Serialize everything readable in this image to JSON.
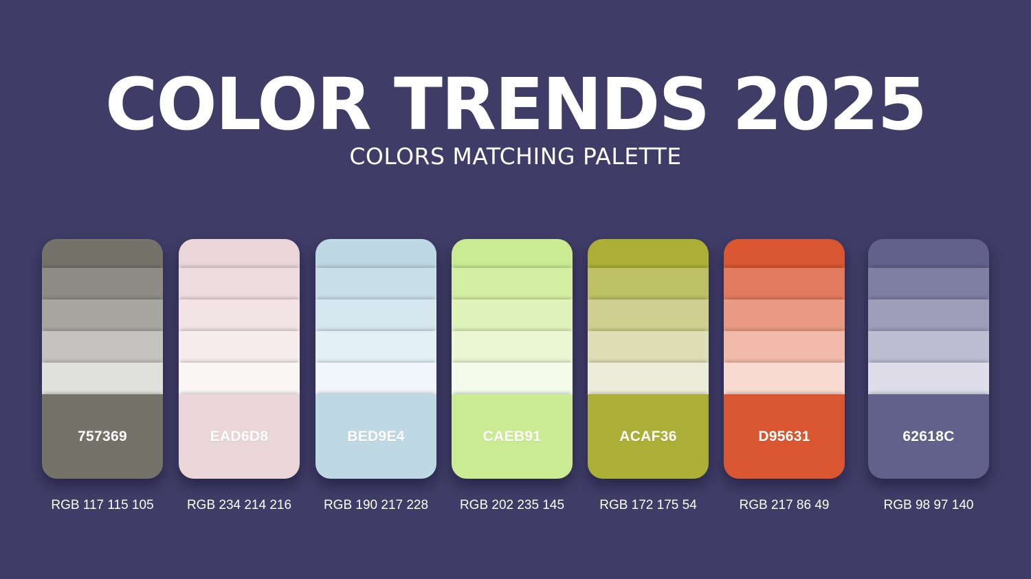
{
  "header": {
    "title": "COLOR TRENDS 2025",
    "subtitle": "COLORS MATCHING PALETTE"
  },
  "palettes": [
    {
      "hex": "757369",
      "rgb": "RGB 117 115 105",
      "shades": [
        "#757369",
        "#8e8c84",
        "#a8a6a0",
        "#c4c3bf",
        "#e0e0dd",
        "#757369"
      ]
    },
    {
      "hex": "EAD6D8",
      "rgb": "RGB 234 214 216",
      "shades": [
        "#ead6d8",
        "#eedcde",
        "#f2e4e6",
        "#f6ecee",
        "#faf6f6",
        "#ead6d8"
      ]
    },
    {
      "hex": "BED9E4",
      "rgb": "RGB 190 217 228",
      "shades": [
        "#bed9e4",
        "#c9e0ea",
        "#d6e8ef",
        "#e3f0f5",
        "#f0f6fa",
        "#bed9e4"
      ]
    },
    {
      "hex": "CAEB91",
      "rgb": "RGB 202 235 145",
      "shades": [
        "#caeb91",
        "#d4efa4",
        "#dff3bb",
        "#e9f7d3",
        "#f4fbea",
        "#caeb91"
      ]
    },
    {
      "hex": "ACAF36",
      "rgb": "RGB 172 175 54",
      "shades": [
        "#acaf36",
        "#bec066",
        "#cfd08f",
        "#dedfb4",
        "#ecedd8",
        "#acaf36"
      ]
    },
    {
      "hex": "D95631",
      "rgb": "RGB 217 86 49",
      "shades": [
        "#d95631",
        "#e27a5e",
        "#ea9a82",
        "#f2baa8",
        "#f9dad0",
        "#d95631"
      ]
    },
    {
      "hex": "62618C",
      "rgb": "RGB 98 97 140",
      "shades": [
        "#62618c",
        "#7f7ea3",
        "#9e9dba",
        "#bebdd2",
        "#dedde9",
        "#62618c"
      ]
    }
  ]
}
